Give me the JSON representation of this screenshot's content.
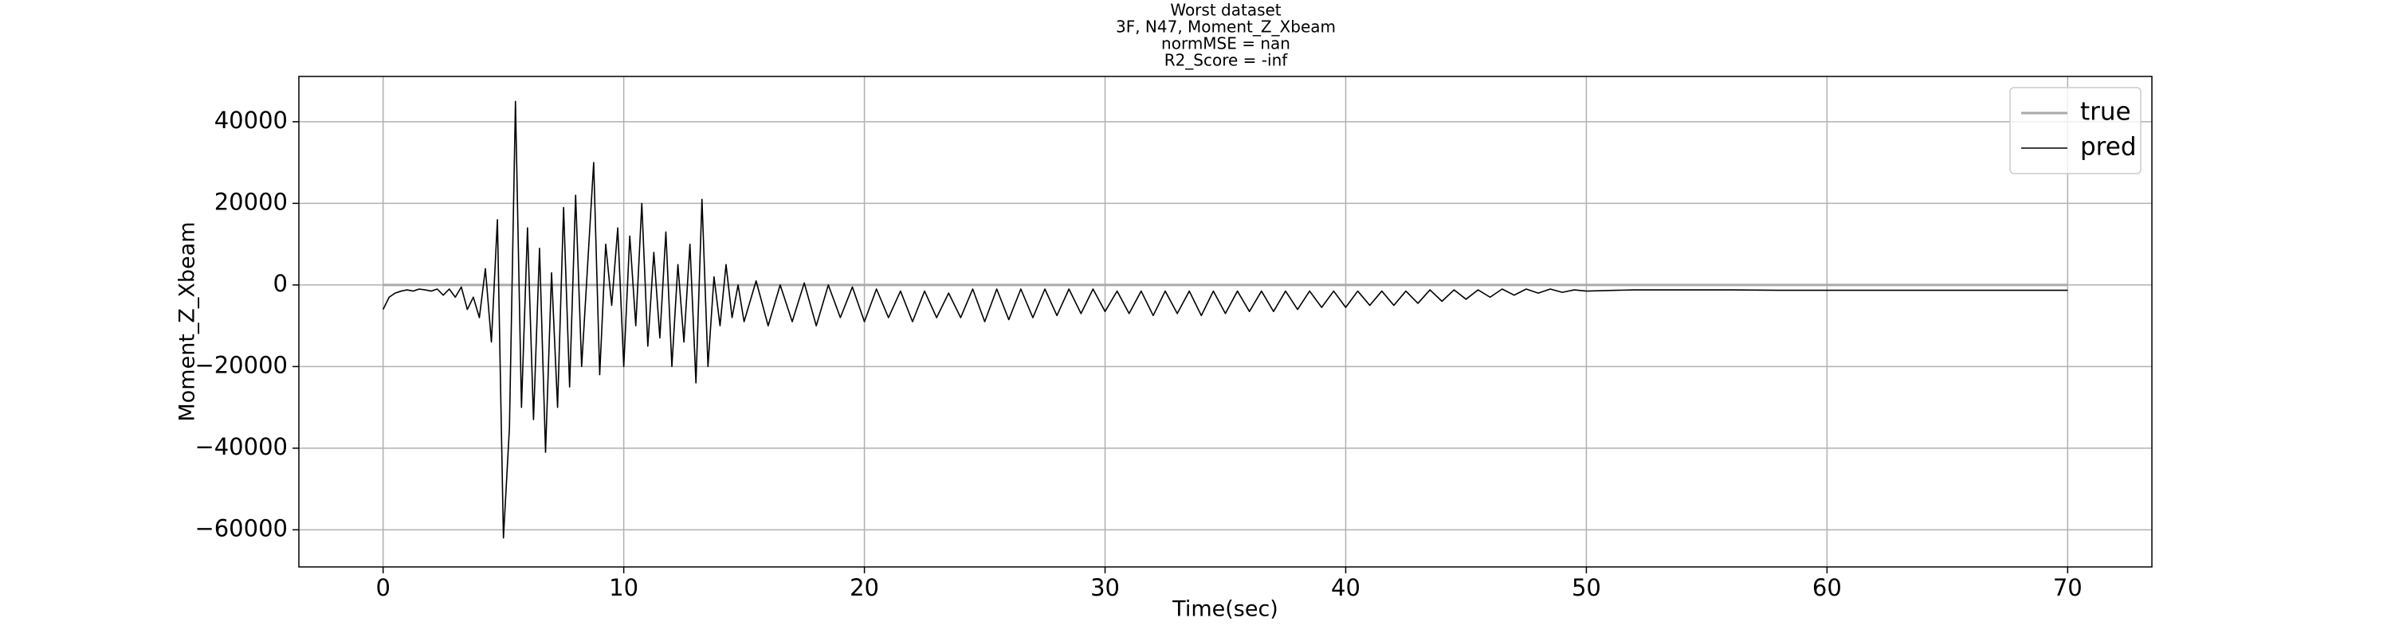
{
  "chart_data": {
    "type": "line",
    "title": [
      "Worst dataset",
      "3F, N47, Moment_Z_Xbeam",
      "normMSE = nan",
      "R2_Score = -inf"
    ],
    "xlabel": "Time(sec)",
    "ylabel": "Moment_Z_Xbeam",
    "xlim": [
      -3.5,
      73.5
    ],
    "ylim": [
      -69100,
      51100
    ],
    "xticks": [
      0,
      10,
      20,
      30,
      40,
      50,
      60,
      70
    ],
    "yticks": [
      {
        "value": -60000,
        "label": "−60000"
      },
      {
        "value": -40000,
        "label": "−40000"
      },
      {
        "value": -20000,
        "label": "−20000"
      },
      0,
      20000,
      40000
    ],
    "grid": true,
    "legend": "upper right",
    "x": [
      0,
      0.25,
      0.5,
      0.75,
      1,
      1.25,
      1.5,
      1.75,
      2,
      2.25,
      2.5,
      2.75,
      3,
      3.25,
      3.5,
      3.75,
      4,
      4.25,
      4.5,
      4.75,
      5,
      5.25,
      5.5,
      5.75,
      6,
      6.25,
      6.5,
      6.75,
      7,
      7.25,
      7.5,
      7.75,
      8,
      8.25,
      8.5,
      8.75,
      9,
      9.25,
      9.5,
      9.75,
      10,
      10.25,
      10.5,
      10.75,
      11,
      11.25,
      11.5,
      11.75,
      12,
      12.25,
      12.5,
      12.75,
      13,
      13.25,
      13.5,
      13.75,
      14,
      14.25,
      14.5,
      14.75,
      15,
      15.5,
      16,
      16.5,
      17,
      17.5,
      18,
      18.5,
      19,
      19.5,
      20,
      20.5,
      21,
      21.5,
      22,
      22.5,
      23,
      23.5,
      24,
      24.5,
      25,
      25.5,
      26,
      26.5,
      27,
      27.5,
      28,
      28.5,
      29,
      29.5,
      30,
      30.5,
      31,
      31.5,
      32,
      32.5,
      33,
      33.5,
      34,
      34.5,
      35,
      35.5,
      36,
      36.5,
      37,
      37.5,
      38,
      38.5,
      39,
      39.5,
      40,
      40.5,
      41,
      41.5,
      42,
      42.5,
      43,
      43.5,
      44,
      44.5,
      45,
      45.5,
      46,
      46.5,
      47,
      47.5,
      48,
      48.5,
      49,
      49.5,
      50,
      52,
      54,
      56,
      58,
      60,
      62,
      64,
      66,
      68,
      70
    ],
    "series": [
      {
        "name": "true",
        "color": "#aaaaaa",
        "width": 3,
        "values": [
          0,
          0,
          0,
          0,
          0,
          0,
          0,
          0,
          0,
          0,
          0,
          0,
          0,
          0,
          0,
          0,
          0,
          0,
          0,
          0,
          0,
          0,
          0,
          0,
          0,
          0,
          0,
          0,
          0,
          0,
          0,
          0,
          0,
          0,
          0,
          0,
          0,
          0,
          0,
          0,
          0,
          0,
          0,
          0,
          0,
          0,
          0,
          0,
          0,
          0,
          0,
          0,
          0,
          0,
          0,
          0,
          0,
          0,
          0,
          0,
          0,
          0,
          0,
          0,
          0,
          0,
          0,
          0,
          0,
          0,
          0,
          0,
          0,
          0,
          0,
          0,
          0,
          0,
          0,
          0,
          0,
          0,
          0,
          0,
          0,
          0,
          0,
          0,
          0,
          0,
          0,
          0,
          0,
          0,
          0,
          0,
          0,
          0,
          0,
          0,
          0,
          0,
          0,
          0,
          0,
          0,
          0,
          0,
          0,
          0,
          0,
          0,
          0,
          0,
          0,
          0,
          0,
          0,
          0,
          0,
          0,
          0,
          0,
          0,
          0,
          0,
          0,
          0,
          0,
          0,
          0,
          0,
          0,
          0,
          0,
          0,
          0,
          0,
          0,
          0,
          0
        ]
      },
      {
        "name": "pred",
        "color": "#000000",
        "width": 1.6,
        "values": [
          -6000,
          -3000,
          -2000,
          -1500,
          -1200,
          -1500,
          -1000,
          -1200,
          -1500,
          -1000,
          -2500,
          -1000,
          -3000,
          -500,
          -6000,
          -3000,
          -8000,
          4000,
          -14000,
          16000,
          -62000,
          -35000,
          45000,
          -30000,
          14000,
          -33000,
          9000,
          -41000,
          3000,
          -30000,
          19000,
          -25000,
          22000,
          -20000,
          5000,
          30000,
          -22000,
          10000,
          -5000,
          14000,
          -20000,
          12000,
          -10000,
          20000,
          -15000,
          8000,
          -13000,
          13000,
          -20000,
          5000,
          -14000,
          10000,
          -24000,
          21000,
          -20000,
          2000,
          -10000,
          5000,
          -8000,
          0,
          -9000,
          1000,
          -10000,
          0,
          -9000,
          500,
          -10000,
          0,
          -8000,
          -500,
          -9000,
          -1000,
          -8000,
          -1500,
          -9000,
          -1500,
          -8000,
          -2000,
          -8000,
          -1000,
          -9000,
          -1000,
          -8500,
          -1000,
          -8000,
          -1000,
          -7500,
          -1000,
          -7000,
          -1000,
          -6500,
          -1500,
          -7000,
          -1500,
          -7500,
          -1500,
          -7000,
          -1500,
          -7500,
          -1500,
          -7000,
          -1500,
          -6500,
          -1500,
          -6500,
          -1500,
          -6000,
          -1500,
          -5500,
          -1500,
          -5500,
          -1500,
          -5000,
          -1500,
          -5000,
          -1500,
          -4500,
          -1200,
          -4000,
          -1200,
          -3500,
          -1200,
          -3000,
          -1000,
          -2500,
          -1000,
          -2000,
          -1000,
          -1800,
          -1200,
          -1500,
          -1200,
          -1200,
          -1200,
          -1300,
          -1300,
          -1300,
          -1300,
          -1300,
          -1300,
          -1300
        ]
      }
    ]
  }
}
